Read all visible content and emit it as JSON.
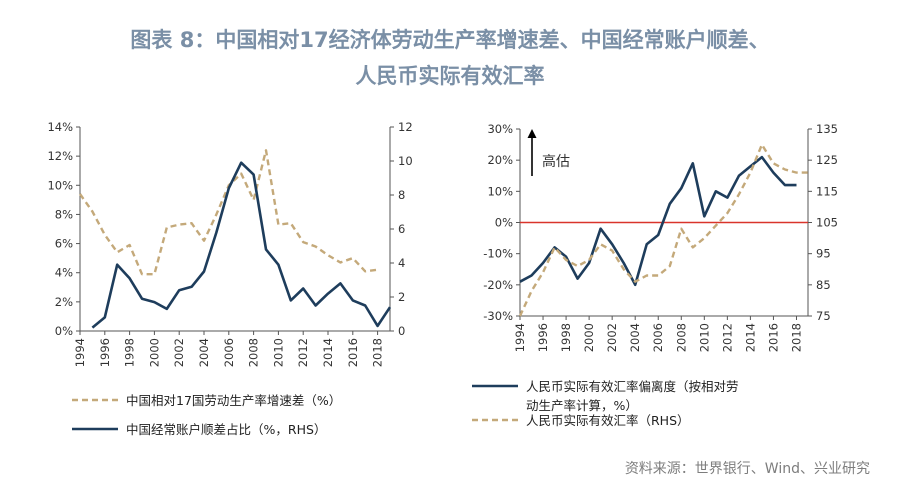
{
  "title": {
    "line1": "图表 8：中国相对17经济体劳动生产率增速差、中国经常账户顺差、",
    "line2": "人民币实际有效汇率"
  },
  "source": "资料来源：世界银行、Wind、兴业研究",
  "colors": {
    "navy": "#1e3d5c",
    "tan": "#c4a97a",
    "red": "#d9342b",
    "axis": "#555555"
  },
  "chart_data": [
    {
      "type": "line",
      "x_tick_labels": [
        "1994",
        "1996",
        "1998",
        "2000",
        "2002",
        "2004",
        "2006",
        "2008",
        "2010",
        "2012",
        "2014",
        "2016",
        "2018"
      ],
      "y_left_tick_labels": [
        "0%",
        "2%",
        "4%",
        "6%",
        "8%",
        "10%",
        "12%",
        "14%"
      ],
      "y_right_tick_labels": [
        "0",
        "2",
        "4",
        "6",
        "8",
        "10",
        "12"
      ],
      "ylim_left": [
        0,
        14
      ],
      "ylim_right": [
        0,
        12
      ],
      "xlim": [
        1994,
        2019
      ],
      "series": [
        {
          "name": "中国相对17国劳动生产率增速差（%）",
          "axis": "left",
          "style": "dashed",
          "x": [
            1994,
            1995,
            1996,
            1997,
            1998,
            1999,
            2000,
            2001,
            2002,
            2003,
            2004,
            2005,
            2006,
            2007,
            2008,
            2009,
            2010,
            2011,
            2012,
            2013,
            2014,
            2015,
            2016,
            2017,
            2018
          ],
          "values": [
            9.4,
            8.2,
            6.6,
            5.4,
            5.9,
            3.9,
            3.9,
            7.1,
            7.3,
            7.4,
            6.2,
            8.0,
            10.0,
            10.8,
            9.0,
            12.4,
            7.3,
            7.4,
            6.1,
            5.8,
            5.2,
            4.7,
            5.0,
            4.1,
            4.2
          ]
        },
        {
          "name": "中国经常账户顺差占比（%，RHS）",
          "axis": "right",
          "style": "solid",
          "x": [
            1995,
            1996,
            1997,
            1998,
            1999,
            2000,
            2001,
            2002,
            2003,
            2004,
            2005,
            2006,
            2007,
            2008,
            2009,
            2010,
            2011,
            2012,
            2013,
            2014,
            2015,
            2016,
            2017,
            2018,
            2019
          ],
          "values": [
            0.2,
            0.8,
            3.9,
            3.1,
            1.9,
            1.7,
            1.3,
            2.4,
            2.6,
            3.5,
            5.8,
            8.4,
            9.9,
            9.2,
            4.8,
            3.9,
            1.8,
            2.5,
            1.5,
            2.2,
            2.8,
            1.8,
            1.5,
            0.3,
            1.4
          ]
        }
      ]
    },
    {
      "type": "line",
      "x_tick_labels": [
        "1994",
        "1996",
        "1998",
        "2000",
        "2002",
        "2004",
        "2006",
        "2008",
        "2010",
        "2012",
        "2014",
        "2016",
        "2018"
      ],
      "y_left_tick_labels": [
        "30%",
        "20%",
        "10%",
        "0%",
        "-10%",
        "-20%",
        "-30%"
      ],
      "y_right_tick_labels": [
        "135",
        "125",
        "115",
        "105",
        "95",
        "85",
        "75"
      ],
      "ylim_left": [
        -30,
        30
      ],
      "ylim_right": [
        75,
        135
      ],
      "xlim": [
        1994,
        2019
      ],
      "annotation": "高估",
      "reference_line": 0,
      "series": [
        {
          "name": "人民币实际有效汇率偏离度（按相对劳动生产率计算，%）",
          "axis": "left",
          "style": "solid",
          "x": [
            1994,
            1995,
            1996,
            1997,
            1998,
            1999,
            2000,
            2001,
            2002,
            2003,
            2004,
            2005,
            2006,
            2007,
            2008,
            2009,
            2010,
            2011,
            2012,
            2013,
            2014,
            2015,
            2016,
            2017,
            2018
          ],
          "values": [
            -19,
            -17,
            -13,
            -8,
            -11,
            -18,
            -13,
            -2,
            -7,
            -13,
            -20,
            -7,
            -4,
            6,
            11,
            19,
            2,
            10,
            8,
            15,
            18,
            21,
            16,
            12,
            12
          ]
        },
        {
          "name": "人民币实际有效汇率（RHS）",
          "axis": "right",
          "style": "dashed",
          "x": [
            1994,
            1995,
            1996,
            1997,
            1998,
            1999,
            2000,
            2001,
            2002,
            2003,
            2004,
            2005,
            2006,
            2007,
            2008,
            2009,
            2010,
            2011,
            2012,
            2013,
            2014,
            2015,
            2016,
            2017,
            2018,
            2019
          ],
          "values": [
            75,
            83,
            89,
            97,
            93,
            91,
            93,
            98,
            96,
            90,
            86,
            88,
            88,
            91,
            103,
            97,
            100,
            104,
            108,
            114,
            121,
            130,
            124,
            122,
            121,
            121
          ]
        }
      ]
    }
  ]
}
